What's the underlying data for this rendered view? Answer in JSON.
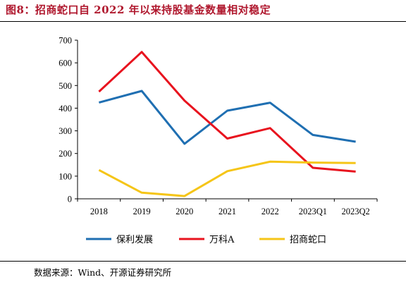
{
  "header": {
    "title": "图8：招商蛇口自 2022 年以来持股基金数量相对稳定"
  },
  "footer": {
    "source": "数据来源：Wind、开源证券研究所"
  },
  "chart_data": {
    "type": "line",
    "categories": [
      "2018",
      "2019",
      "2020",
      "2021",
      "2022",
      "2023Q1",
      "2023Q2"
    ],
    "ylim": [
      0,
      700
    ],
    "yticks": [
      0,
      100,
      200,
      300,
      400,
      500,
      600,
      700
    ],
    "grid": false,
    "legend_position": "bottom",
    "series": [
      {
        "name": "保利发展",
        "color": "#1f6fb2",
        "values": [
          425,
          476,
          243,
          389,
          424,
          282,
          252
        ]
      },
      {
        "name": "万科A",
        "color": "#e8131e",
        "values": [
          473,
          648,
          433,
          266,
          312,
          137,
          120
        ]
      },
      {
        "name": "招商蛇口",
        "color": "#f5c518",
        "values": [
          127,
          27,
          12,
          122,
          164,
          160,
          158
        ]
      }
    ]
  }
}
